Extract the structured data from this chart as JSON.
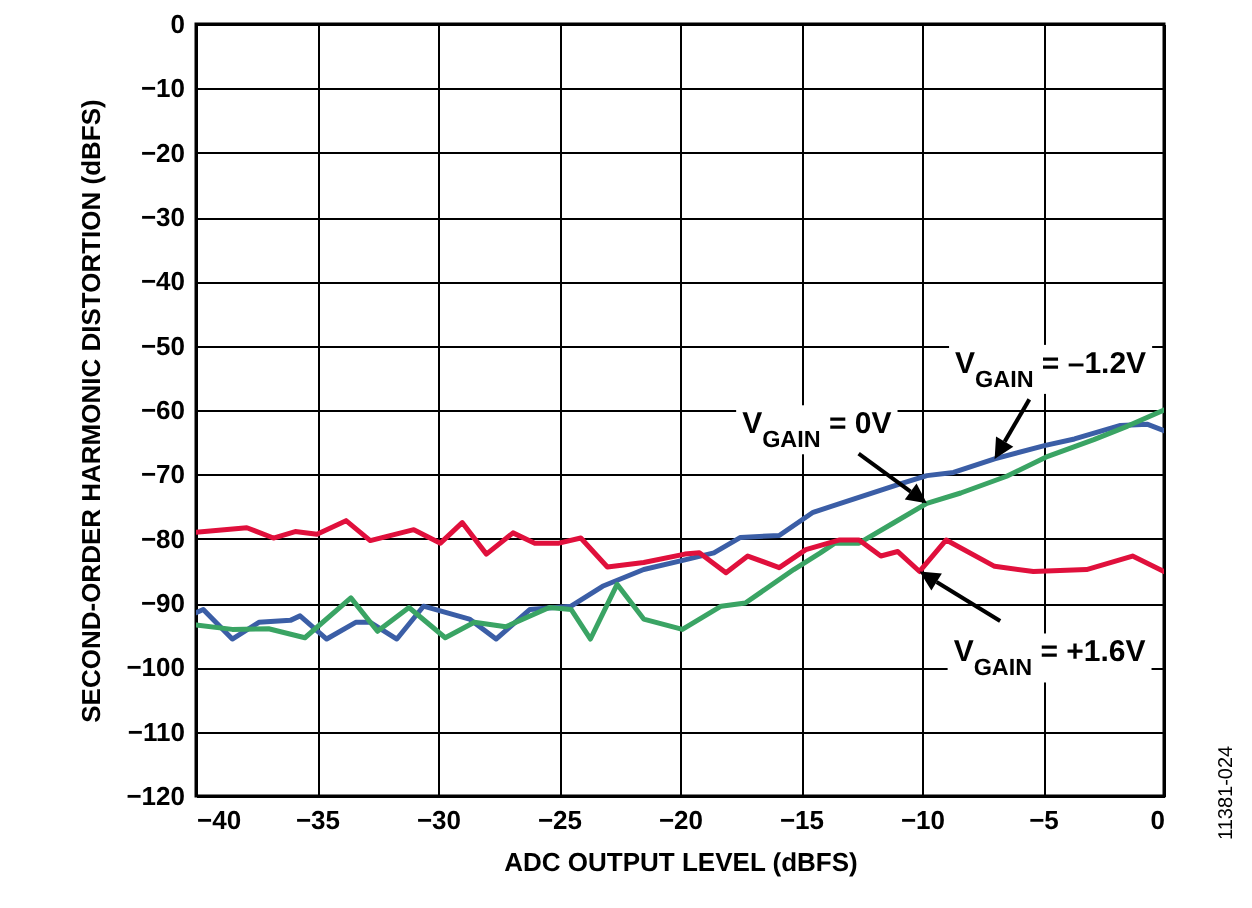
{
  "chart_data": {
    "type": "line",
    "xlabel": "ADC OUTPUT LEVEL (dBFS)",
    "ylabel": "SECOND-ORDER HARMONIC DISTORTION (dBFS)",
    "xlim": [
      -40,
      0
    ],
    "xticks": [
      -40,
      -35,
      -30,
      -25,
      -20,
      -15,
      -10,
      -5,
      0
    ],
    "ylim": [
      -120,
      0
    ],
    "yticks": [
      -120,
      -110,
      -100,
      -90,
      -80,
      -70,
      -60,
      -50,
      -40,
      -30,
      -20,
      -10,
      0
    ],
    "grid": true,
    "line_style": "solid",
    "series": [
      {
        "color": "#3b5ea6",
        "x": [
          -40,
          -39.7,
          -38.5,
          -37.4,
          -36.1,
          -35.7,
          -34.6,
          -33.4,
          -32.8,
          -31.7,
          -30.6,
          -28.7,
          -27.6,
          -26.2,
          -24.5,
          -23.2,
          -21.5,
          -19.8,
          -18.6,
          -17.5,
          -15.9,
          -14.5,
          -12.8,
          -10.9,
          -9.8,
          -8.7,
          -7,
          -4.9,
          -3.7,
          -1.8,
          -0.7,
          0
        ],
        "values": [
          -91.5,
          -91,
          -95.6,
          -93,
          -92.7,
          -92,
          -95.6,
          -93,
          -93,
          -95.6,
          -90.5,
          -92.5,
          -95.6,
          -91,
          -90.5,
          -87.4,
          -84.8,
          -83.3,
          -82.2,
          -79.8,
          -79.5,
          -75.9,
          -73.8,
          -71.5,
          -70.2,
          -69.7,
          -67.6,
          -65.5,
          -64.5,
          -62.4,
          -62.2,
          -63.2
        ]
      },
      {
        "color": "#3aa464",
        "x": [
          -40,
          -38.5,
          -37,
          -35.5,
          -33.6,
          -32.5,
          -31.2,
          -29.7,
          -28.5,
          -27.2,
          -25.4,
          -24.5,
          -23.7,
          -22.6,
          -21.5,
          -19.9,
          -18.3,
          -17.3,
          -15.3,
          -14.2,
          -13.6,
          -12.6,
          -11.2,
          -9.8,
          -8.4,
          -6.5,
          -4.8,
          -2.9,
          -1.5,
          0
        ],
        "values": [
          -93.4,
          -94.1,
          -94,
          -95.4,
          -89.2,
          -94.4,
          -90.7,
          -95.4,
          -93,
          -93.7,
          -90.7,
          -91,
          -95.6,
          -87.1,
          -92.5,
          -94.1,
          -90.5,
          -90,
          -84.8,
          -82.2,
          -80.7,
          -80.7,
          -77.6,
          -74.5,
          -72.9,
          -70.3,
          -67.2,
          -64.6,
          -62.5,
          -60
        ]
      },
      {
        "color": "#e0103c",
        "x": [
          -40,
          -37.9,
          -36.8,
          -35.9,
          -35,
          -33.8,
          -32.8,
          -31,
          -29.9,
          -29,
          -28,
          -26.9,
          -26,
          -25,
          -24.1,
          -23,
          -21.5,
          -19.8,
          -19.2,
          -18.1,
          -17.2,
          -15.9,
          -14.8,
          -13.4,
          -12.6,
          -11.7,
          -11,
          -10.1,
          -9,
          -7,
          -5.4,
          -3.2,
          -1.3,
          0
        ],
        "values": [
          -79,
          -78.3,
          -79.9,
          -78.9,
          -79.3,
          -77.2,
          -80.3,
          -78.6,
          -80.7,
          -77.5,
          -82.4,
          -79.1,
          -80.7,
          -80.7,
          -79.9,
          -84.4,
          -83.7,
          -82.4,
          -82.2,
          -85.3,
          -82.7,
          -84.5,
          -81.7,
          -80.2,
          -80.2,
          -82.7,
          -82,
          -85.1,
          -80.2,
          -84.3,
          -85.1,
          -84.8,
          -82.7,
          -85.1
        ]
      }
    ],
    "annotations": [
      {
        "text": "V$_{GAIN}$ = –1.2V",
        "x": -7,
        "y": -67.6
      },
      {
        "text": "V$_{GAIN}$ = 0V",
        "x": -9.8,
        "y": -74.5
      },
      {
        "text": "V$_{GAIN}$ = +1.6V",
        "x": -10.1,
        "y": -85.1
      },
      "11381-024"
    ]
  }
}
